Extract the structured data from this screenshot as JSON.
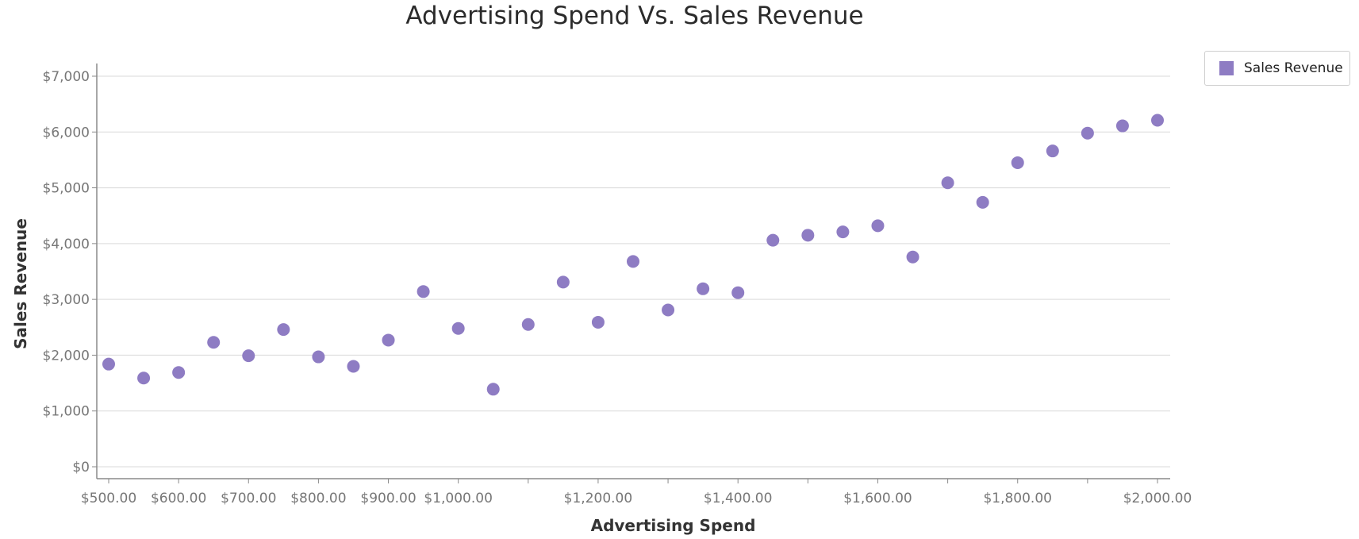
{
  "chart_data": {
    "type": "scatter",
    "title": "Advertising Spend Vs. Sales Revenue",
    "xlabel": "Advertising Spend",
    "ylabel": "Sales Revenue",
    "xlim": [
      500,
      2000
    ],
    "ylim": [
      0,
      7000
    ],
    "x_ticks": [
      500,
      600,
      700,
      800,
      900,
      1000,
      1200,
      1400,
      1600,
      1800,
      2000
    ],
    "x_tick_labels": [
      "$500.00",
      "$600.00",
      "$700.00",
      "$800.00",
      "$900.00",
      "$1,000.00",
      "$1,200.00",
      "$1,400.00",
      "$1,600.00",
      "$1,800.00",
      "$2,000.00"
    ],
    "x_minor_ticks": [
      500,
      600,
      700,
      800,
      900,
      1000,
      1100,
      1200,
      1300,
      1400,
      1500,
      1600,
      1700,
      1800,
      1900,
      2000
    ],
    "y_ticks": [
      0,
      1000,
      2000,
      3000,
      4000,
      5000,
      6000,
      7000
    ],
    "y_tick_labels": [
      "$0",
      "$1,000",
      "$2,000",
      "$3,000",
      "$4,000",
      "$5,000",
      "$6,000",
      "$7,000"
    ],
    "grid": true,
    "legend_position": "top-right",
    "series": [
      {
        "name": "Sales Revenue",
        "color": "#8e7cc3",
        "points": [
          {
            "x": 500,
            "y": 1840
          },
          {
            "x": 550,
            "y": 1590
          },
          {
            "x": 600,
            "y": 1690
          },
          {
            "x": 650,
            "y": 2230
          },
          {
            "x": 700,
            "y": 1990
          },
          {
            "x": 750,
            "y": 2460
          },
          {
            "x": 800,
            "y": 1970
          },
          {
            "x": 850,
            "y": 1800
          },
          {
            "x": 900,
            "y": 2270
          },
          {
            "x": 950,
            "y": 3140
          },
          {
            "x": 1000,
            "y": 2480
          },
          {
            "x": 1050,
            "y": 1390
          },
          {
            "x": 1100,
            "y": 2550
          },
          {
            "x": 1150,
            "y": 3310
          },
          {
            "x": 1200,
            "y": 2590
          },
          {
            "x": 1250,
            "y": 3680
          },
          {
            "x": 1300,
            "y": 2810
          },
          {
            "x": 1350,
            "y": 3190
          },
          {
            "x": 1400,
            "y": 3120
          },
          {
            "x": 1450,
            "y": 4060
          },
          {
            "x": 1500,
            "y": 4150
          },
          {
            "x": 1550,
            "y": 4210
          },
          {
            "x": 1600,
            "y": 4320
          },
          {
            "x": 1650,
            "y": 3760
          },
          {
            "x": 1700,
            "y": 5090
          },
          {
            "x": 1750,
            "y": 4740
          },
          {
            "x": 1800,
            "y": 5450
          },
          {
            "x": 1850,
            "y": 5660
          },
          {
            "x": 1900,
            "y": 5980
          },
          {
            "x": 1950,
            "y": 6110
          },
          {
            "x": 2000,
            "y": 6210
          }
        ]
      }
    ]
  }
}
